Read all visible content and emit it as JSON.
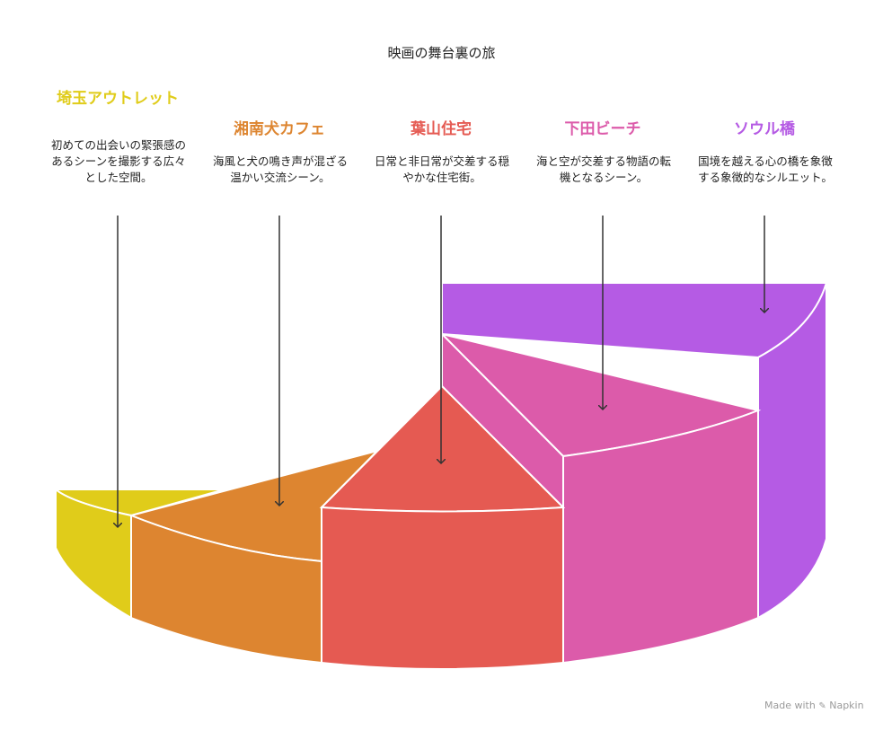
{
  "title": "映画の舞台裏の旅",
  "colors": {
    "yellow": "#E0CC1A",
    "orange": "#DD8530",
    "red": "#E55A52",
    "pink": "#DC5BAA",
    "purple": "#B55BE4"
  },
  "segments": [
    {
      "name": "埼玉アウトレット",
      "description": "初めての出会いの緊張感のあるシーンを撮影する広々とした空間。",
      "color": "#E0CC1A"
    },
    {
      "name": "湘南犬カフェ",
      "description": "海風と犬の鳴き声が混ざる温かい交流シーン。",
      "color": "#DD8530"
    },
    {
      "name": "葉山住宅",
      "description": "日常と非日常が交差する穏やかな住宅街。",
      "color": "#E55A52"
    },
    {
      "name": "下田ビーチ",
      "description": "海と空が交差する物語の転機となるシーン。",
      "color": "#DC5BAA"
    },
    {
      "name": "ソウル橋",
      "description": "国境を越える心の橋を象徴する象徴的なシルエット。",
      "color": "#B55BE4"
    }
  ],
  "footer": {
    "brand": "Made with",
    "name": "Napkin"
  }
}
